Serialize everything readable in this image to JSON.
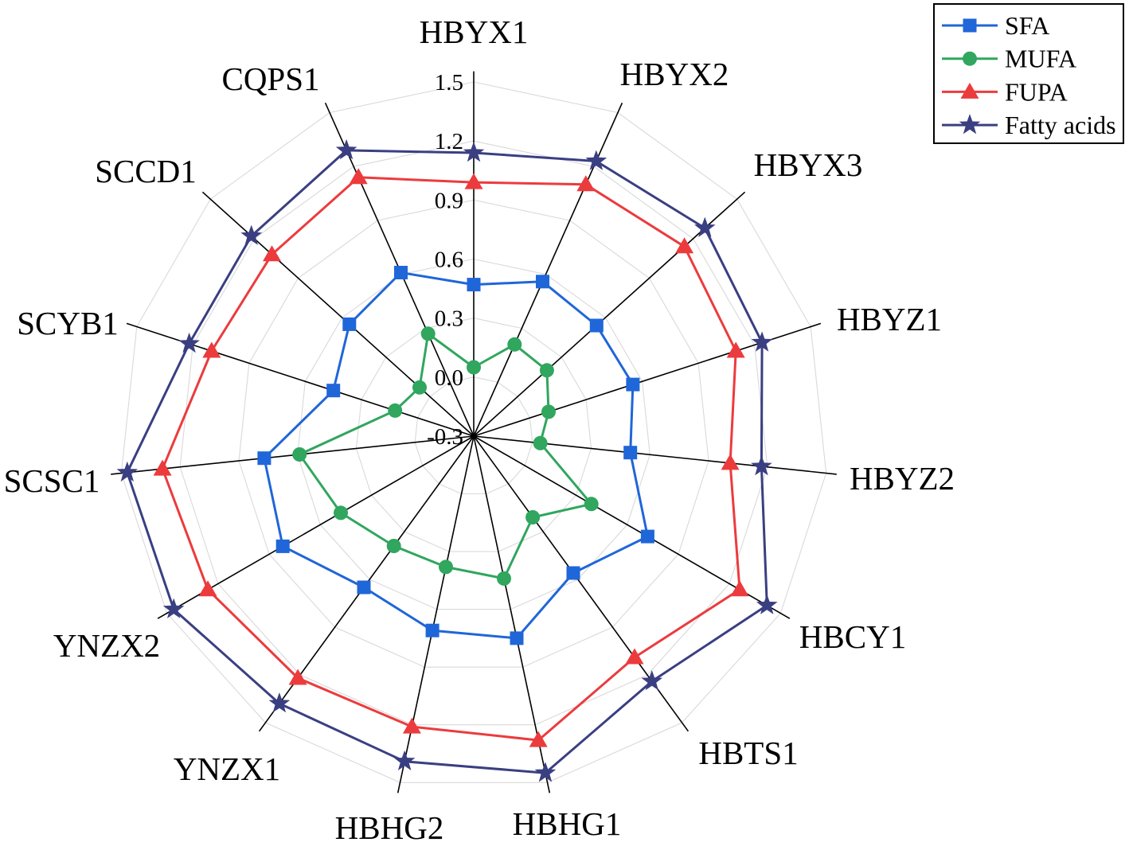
{
  "chart_data": {
    "type": "radar",
    "categories": [
      "HBYX1",
      "HBYX2",
      "HBYX3",
      "HBYZ1",
      "HBYZ2",
      "HBCY1",
      "HBTS1",
      "HBHG1",
      "HBHG2",
      "YNZX1",
      "YNZX2",
      "SCSC1",
      "SCYB1",
      "SCCD1",
      "CQPS1"
    ],
    "rlim": [
      -0.3,
      1.5
    ],
    "tick_labels": [
      "1.5",
      "1.2",
      "0.9",
      "0.6",
      "0.3",
      "0.0",
      "-0.3"
    ],
    "grid": true,
    "legend": "top-right",
    "series": [
      {
        "name": "SFA",
        "color": "#1f66d8",
        "marker": "square",
        "values": [
          0.47,
          0.56,
          0.54,
          0.55,
          0.5,
          0.72,
          0.56,
          0.75,
          0.71,
          0.65,
          0.82,
          0.77,
          0.45,
          0.55,
          0.61
        ]
      },
      {
        "name": "MUFA",
        "color": "#30a65e",
        "marker": "circle",
        "values": [
          0.05,
          0.21,
          0.2,
          0.1,
          0.04,
          0.39,
          0.21,
          0.44,
          0.38,
          0.39,
          0.48,
          0.59,
          0.12,
          0.07,
          0.27
        ]
      },
      {
        "name": "FUPA",
        "color": "#ec3b3d",
        "marker": "triangle",
        "values": [
          0.99,
          1.1,
          1.14,
          1.1,
          1.01,
          1.26,
          1.09,
          1.28,
          1.21,
          1.22,
          1.26,
          1.29,
          1.1,
          1.08,
          1.14
        ]
      },
      {
        "name": "Fatty acids",
        "color": "#3a3f82",
        "marker": "star",
        "values": [
          1.14,
          1.23,
          1.28,
          1.24,
          1.17,
          1.42,
          1.24,
          1.45,
          1.39,
          1.38,
          1.46,
          1.47,
          1.22,
          1.22,
          1.29
        ]
      }
    ]
  }
}
